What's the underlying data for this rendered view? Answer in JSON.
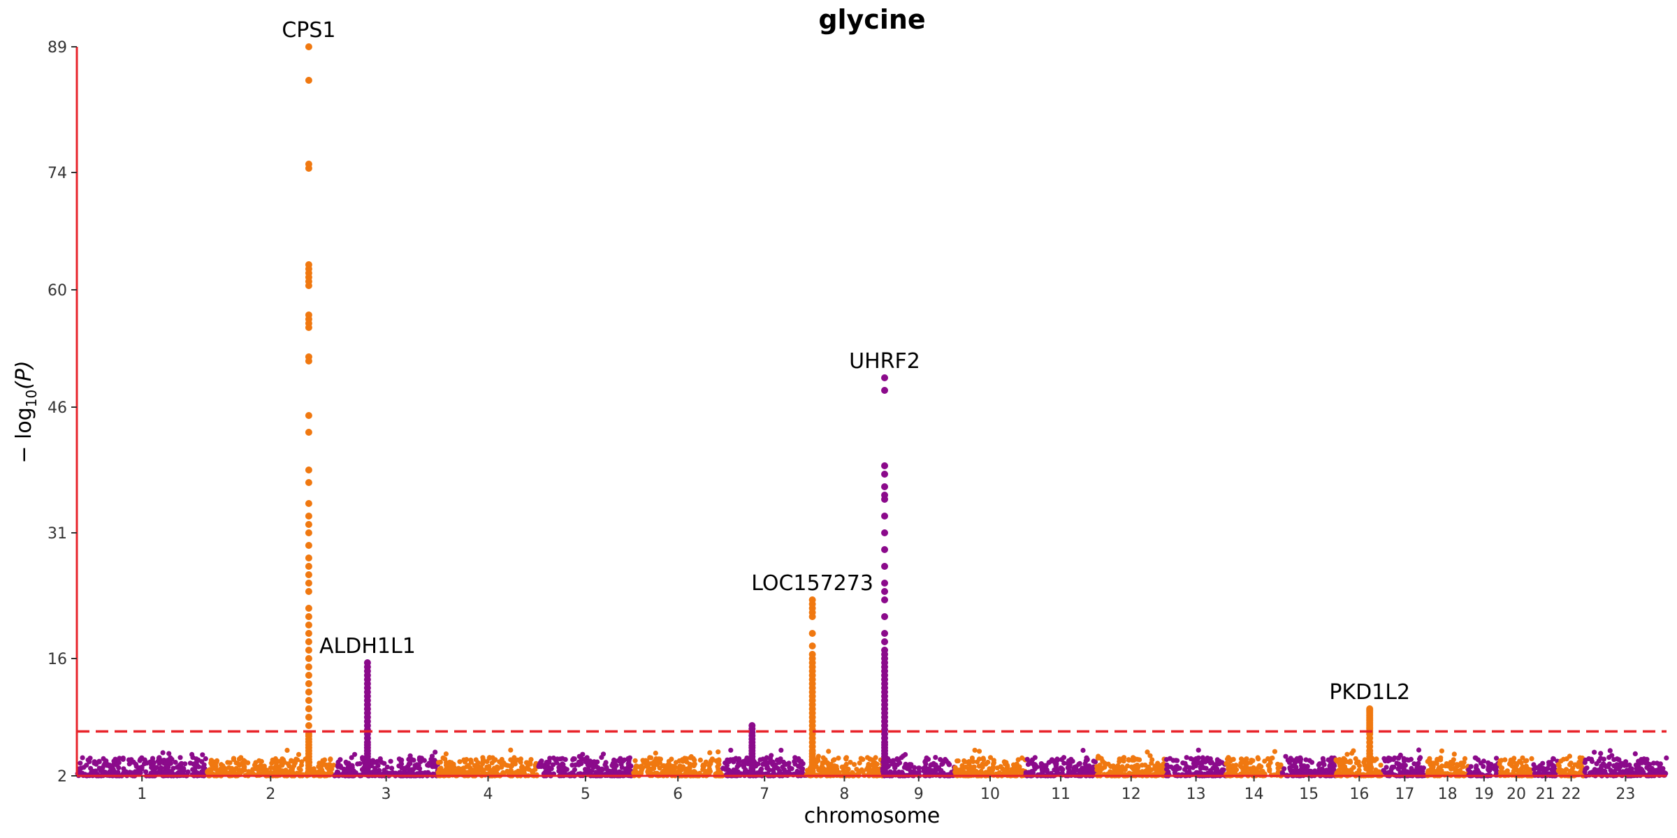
{
  "chart_data": {
    "type": "scatter",
    "title": "glycine",
    "xlabel": "chromosome",
    "ylabel": {
      "prefix": "− log",
      "subscript": "10",
      "suffix": "(P)"
    },
    "ylim": [
      2,
      89
    ],
    "yticks": [
      2,
      16,
      31,
      46,
      60,
      74,
      89
    ],
    "threshold": 7.3,
    "colors": {
      "odd": "#8B0A8B",
      "even": "#F07810",
      "axis": "#E8232A",
      "threshold": "#E8232A"
    },
    "chromosomes": [
      {
        "label": "1",
        "length": 248
      },
      {
        "label": "2",
        "length": 242
      },
      {
        "label": "3",
        "length": 198
      },
      {
        "label": "4",
        "length": 190
      },
      {
        "label": "5",
        "length": 181
      },
      {
        "label": "6",
        "length": 171
      },
      {
        "label": "7",
        "length": 159
      },
      {
        "label": "8",
        "length": 145
      },
      {
        "label": "9",
        "length": 138
      },
      {
        "label": "10",
        "length": 134
      },
      {
        "label": "11",
        "length": 135
      },
      {
        "label": "12",
        "length": 133
      },
      {
        "label": "13",
        "length": 114
      },
      {
        "label": "14",
        "length": 107
      },
      {
        "label": "15",
        "length": 102
      },
      {
        "label": "16",
        "length": 90
      },
      {
        "label": "17",
        "length": 83
      },
      {
        "label": "18",
        "length": 80
      },
      {
        "label": "19",
        "length": 59
      },
      {
        "label": "20",
        "length": 64
      },
      {
        "label": "21",
        "length": 47
      },
      {
        "label": "22",
        "length": 51
      },
      {
        "label": "23",
        "length": 156
      }
    ],
    "peaks": [
      {
        "gene": "CPS1",
        "chromosome": "2",
        "position": 0.8,
        "values": [
          89,
          85,
          75,
          74.5,
          63,
          62.5,
          62,
          61.5,
          61,
          60.5,
          57,
          56.5,
          56,
          55.5,
          52,
          51.5,
          45,
          43,
          38.5,
          37,
          34.5,
          33,
          32,
          31,
          29.5,
          28,
          27,
          26,
          25,
          24,
          22,
          21,
          20,
          19,
          18,
          17,
          16,
          15,
          14,
          13,
          12,
          11,
          10,
          9,
          8,
          7
        ]
      },
      {
        "gene": "ALDH1L1",
        "chromosome": "3",
        "position": 0.32,
        "values": [
          15.5,
          15,
          14.5,
          14,
          13.5,
          13,
          12.5,
          12,
          11.5,
          11,
          10.5,
          10,
          9.5,
          9,
          8.5,
          8,
          7.5,
          7,
          6.5,
          6
        ]
      },
      {
        "gene": "LOC157273",
        "chromosome": "8",
        "position": 0.08,
        "values": [
          23,
          22.5,
          22,
          21.5,
          21,
          19,
          17.5,
          16.5,
          16,
          15.5,
          15,
          14.5,
          14,
          13.5,
          13,
          12.5,
          12,
          11.5,
          11,
          10.5,
          10,
          9.5,
          9,
          8.5,
          8,
          7.5,
          7,
          6.5,
          6,
          5.5,
          5
        ]
      },
      {
        "gene": "UHRF2",
        "chromosome": "9",
        "position": 0.03,
        "values": [
          49.5,
          48,
          39,
          38,
          36.5,
          35.5,
          35,
          33,
          31,
          29,
          27,
          25,
          24,
          23,
          21,
          19,
          18,
          17,
          16.5,
          16,
          15.5,
          15,
          14.5,
          14,
          13.5,
          13,
          12.5,
          12,
          11.5,
          11,
          10.5,
          10,
          9.5,
          9,
          8.5,
          8,
          7.5,
          7,
          6.5,
          6
        ]
      },
      {
        "gene": "PKD1L2",
        "chromosome": "16",
        "position": 0.72,
        "values": [
          10,
          9.8,
          9.6,
          9.4,
          9.2,
          9,
          8.8,
          8.6,
          8.4,
          8.2,
          8,
          7.8,
          7.6,
          7.4,
          7.2,
          7,
          6.5,
          6,
          5.5,
          5
        ]
      },
      {
        "gene": "",
        "chromosome": "7",
        "position": 0.35,
        "values": [
          8,
          7.6,
          7.2,
          6.8,
          6.4,
          6,
          5.6
        ]
      }
    ]
  }
}
